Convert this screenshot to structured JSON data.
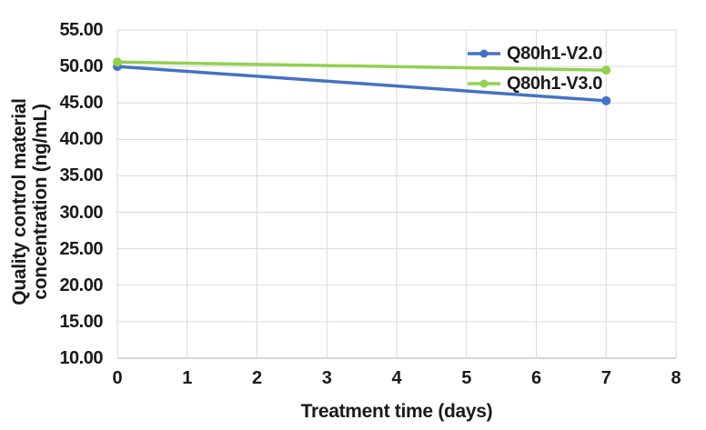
{
  "chart_data": {
    "type": "line",
    "title": "",
    "xlabel": "Treatment time (days)",
    "ylabel": "Quality control material concentration (ng/mL)",
    "ylabel_lines": [
      "Quality control material",
      "concentration (ng/mL)"
    ],
    "xlim": [
      0,
      8
    ],
    "ylim": [
      10,
      55
    ],
    "xticks": [
      "0",
      "1",
      "2",
      "3",
      "4",
      "5",
      "6",
      "7",
      "8"
    ],
    "yticks": [
      "55.00",
      "50.00",
      "45.00",
      "40.00",
      "35.00",
      "30.00",
      "25.00",
      "20.00",
      "15.00",
      "10.00"
    ],
    "x": [
      0,
      7
    ],
    "series": [
      {
        "name": "Q80h1-V2.0",
        "color": "#4472C4",
        "values": [
          50.0,
          45.3
        ]
      },
      {
        "name": "Q80h1-V3.0",
        "color": "#92D050",
        "values": [
          50.6,
          49.5
        ]
      }
    ],
    "grid": "both",
    "legend_position": "top-right-inside",
    "colors": {
      "gridline": "#D9D9D9",
      "axis_line": "#C9C9C9",
      "text": "#1a1a1a",
      "background": "#FFFFFF"
    }
  }
}
